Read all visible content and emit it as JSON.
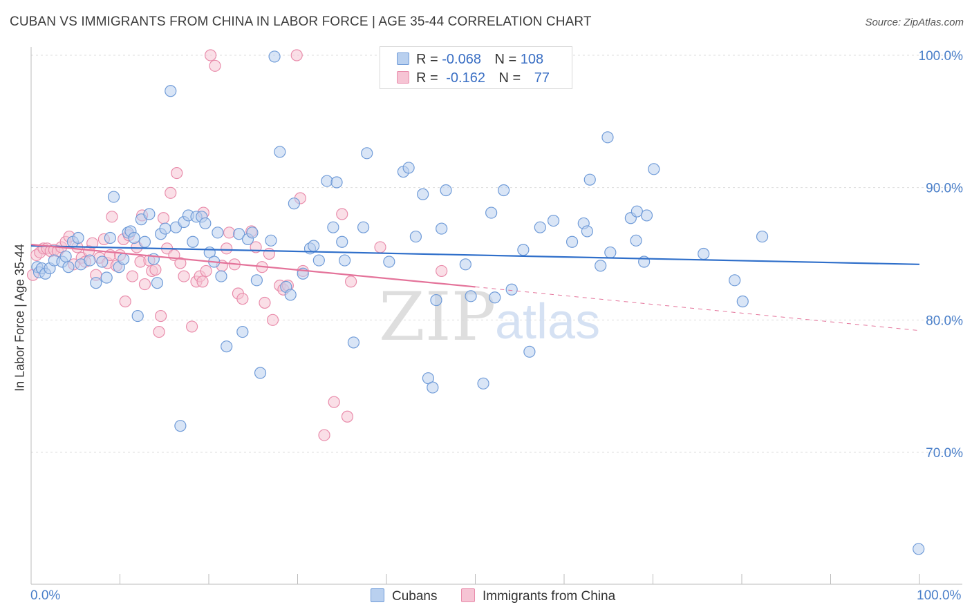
{
  "title": "CUBAN VS IMMIGRANTS FROM CHINA IN LABOR FORCE | AGE 35-44 CORRELATION CHART",
  "source": "Source: ZipAtlas.com",
  "watermark": {
    "zip": "ZIP",
    "atlas": "atlas"
  },
  "legend": {
    "rows": [
      {
        "r_label": "R =",
        "r_value": "-0.068",
        "n_label": "N =",
        "n_value": "108"
      },
      {
        "r_label": "R =",
        "r_value": "-0.162",
        "n_label": "N =",
        "n_value": "77"
      }
    ]
  },
  "bottom_legend": {
    "series1": "Cubans",
    "series2": "Immigrants from China"
  },
  "colors": {
    "blue_fill": "#b9d0ef",
    "blue_stroke": "#6f9bd8",
    "blue_line": "#2f6fca",
    "pink_fill": "#f6c4d4",
    "pink_stroke": "#e98cab",
    "pink_line": "#e4739a",
    "grid": "#dddddd",
    "axis": "#bbbbbb",
    "tick_text": "#4a7fc9"
  },
  "chart_data": {
    "type": "scatter",
    "title": "CUBAN VS IMMIGRANTS FROM CHINA IN LABOR FORCE | AGE 35-44 CORRELATION CHART",
    "xlabel": "",
    "ylabel": "In Labor Force | Age 35-44",
    "x_ticks": [
      "0.0%",
      "100.0%"
    ],
    "y_ticks": [
      "70.0%",
      "80.0%",
      "90.0%",
      "100.0%"
    ],
    "y_tick_values": [
      70,
      80,
      90,
      100
    ],
    "xlim": [
      0,
      100
    ],
    "ylim": [
      60,
      101
    ],
    "grid": true,
    "series": [
      {
        "name": "Cubans",
        "color": "blue",
        "R": -0.068,
        "N": 108,
        "trend": {
          "x": [
            0,
            100
          ],
          "y": [
            85.6,
            84.2
          ],
          "dashed_to": null
        },
        "points": [
          [
            0.7,
            84
          ],
          [
            0.9,
            83.6
          ],
          [
            1.2,
            83.9
          ],
          [
            1.6,
            83.5
          ],
          [
            2.1,
            83.9
          ],
          [
            2.6,
            84.5
          ],
          [
            3.5,
            84.4
          ],
          [
            3.9,
            84.8
          ],
          [
            4.2,
            84
          ],
          [
            4.7,
            85.9
          ],
          [
            5.3,
            86.2
          ],
          [
            5.6,
            84.2
          ],
          [
            6.6,
            84.5
          ],
          [
            7.3,
            82.8
          ],
          [
            8.0,
            84.4
          ],
          [
            8.5,
            83.2
          ],
          [
            8.9,
            86.2
          ],
          [
            9.3,
            89.3
          ],
          [
            9.9,
            84
          ],
          [
            10.4,
            84.6
          ],
          [
            10.9,
            86.6
          ],
          [
            11.2,
            86.7
          ],
          [
            11.6,
            86.2
          ],
          [
            12.0,
            80.3
          ],
          [
            12.4,
            87.6
          ],
          [
            12.8,
            85.9
          ],
          [
            13.3,
            88
          ],
          [
            13.8,
            84.6
          ],
          [
            14.2,
            82.8
          ],
          [
            14.6,
            86.5
          ],
          [
            15.1,
            86.9
          ],
          [
            15.7,
            97.3
          ],
          [
            16.3,
            87
          ],
          [
            16.8,
            72
          ],
          [
            17.2,
            87.4
          ],
          [
            17.7,
            87.9
          ],
          [
            18.2,
            85.9
          ],
          [
            18.6,
            87.8
          ],
          [
            19.2,
            87.8
          ],
          [
            19.6,
            87.3
          ],
          [
            20.1,
            85.1
          ],
          [
            20.6,
            84.4
          ],
          [
            21.0,
            86.6
          ],
          [
            21.4,
            83.3
          ],
          [
            22.0,
            78
          ],
          [
            23.4,
            86.5
          ],
          [
            23.8,
            79.1
          ],
          [
            24.4,
            86.1
          ],
          [
            24.9,
            86.6
          ],
          [
            25.4,
            83
          ],
          [
            25.8,
            76
          ],
          [
            27.0,
            86
          ],
          [
            27.4,
            99.9
          ],
          [
            28.0,
            92.7
          ],
          [
            28.7,
            82.5
          ],
          [
            29.2,
            81.9
          ],
          [
            29.6,
            88.8
          ],
          [
            30.6,
            83.5
          ],
          [
            31.4,
            85.4
          ],
          [
            31.8,
            85.6
          ],
          [
            32.4,
            84.5
          ],
          [
            33.3,
            90.5
          ],
          [
            34.0,
            87
          ],
          [
            34.4,
            90.4
          ],
          [
            35.0,
            85.9
          ],
          [
            35.3,
            84.5
          ],
          [
            36.3,
            78.3
          ],
          [
            37.4,
            87
          ],
          [
            37.8,
            92.6
          ],
          [
            40.3,
            84.4
          ],
          [
            41.9,
            91.2
          ],
          [
            42.5,
            91.5
          ],
          [
            43.3,
            86.3
          ],
          [
            44.1,
            89.5
          ],
          [
            44.7,
            75.6
          ],
          [
            45.2,
            74.9
          ],
          [
            45.6,
            81.5
          ],
          [
            46.2,
            86.9
          ],
          [
            46.7,
            89.8
          ],
          [
            48.9,
            84.2
          ],
          [
            49.5,
            81.8
          ],
          [
            50.9,
            75.2
          ],
          [
            51.8,
            88.1
          ],
          [
            52.2,
            81.7
          ],
          [
            53.2,
            89.8
          ],
          [
            54.1,
            82.3
          ],
          [
            55.4,
            85.3
          ],
          [
            56.1,
            77.6
          ],
          [
            57.3,
            87
          ],
          [
            58.8,
            87.5
          ],
          [
            60.9,
            85.9
          ],
          [
            62.2,
            87.3
          ],
          [
            62.6,
            86.7
          ],
          [
            62.9,
            90.6
          ],
          [
            64.1,
            84.1
          ],
          [
            64.9,
            93.8
          ],
          [
            65.2,
            85.1
          ],
          [
            67.5,
            87.7
          ],
          [
            68.1,
            86
          ],
          [
            68.2,
            88.2
          ],
          [
            69.0,
            84.4
          ],
          [
            69.3,
            87.9
          ],
          [
            70.1,
            91.4
          ],
          [
            75.7,
            85
          ],
          [
            79.2,
            83
          ],
          [
            80.1,
            81.4
          ],
          [
            82.3,
            86.3
          ],
          [
            99.9,
            62.7
          ]
        ]
      },
      {
        "name": "Immigrants from China",
        "color": "pink",
        "R": -0.162,
        "N": 77,
        "trend": {
          "x": [
            0,
            50
          ],
          "y": [
            85.7,
            82.5
          ],
          "dashed_to": [
            100,
            79.2
          ]
        },
        "points": [
          [
            0.2,
            83.4
          ],
          [
            0.6,
            84.9
          ],
          [
            1.0,
            85.1
          ],
          [
            1.4,
            85.4
          ],
          [
            1.8,
            85.4
          ],
          [
            2.2,
            85.2
          ],
          [
            2.6,
            85.3
          ],
          [
            3.0,
            85.2
          ],
          [
            3.4,
            85.5
          ],
          [
            3.9,
            85.9
          ],
          [
            4.3,
            86.3
          ],
          [
            4.8,
            84.2
          ],
          [
            5.2,
            85.5
          ],
          [
            5.7,
            84.7
          ],
          [
            6.1,
            84.4
          ],
          [
            6.5,
            85.2
          ],
          [
            6.9,
            85.8
          ],
          [
            7.3,
            83.4
          ],
          [
            7.7,
            84.7
          ],
          [
            8.2,
            86.1
          ],
          [
            8.6,
            84.3
          ],
          [
            8.9,
            84.9
          ],
          [
            9.1,
            87.8
          ],
          [
            9.6,
            84.1
          ],
          [
            10.0,
            84.9
          ],
          [
            10.4,
            86.1
          ],
          [
            10.6,
            81.4
          ],
          [
            11.0,
            86.4
          ],
          [
            11.4,
            83.3
          ],
          [
            11.9,
            85.5
          ],
          [
            12.3,
            84.4
          ],
          [
            12.5,
            87.9
          ],
          [
            12.8,
            82.7
          ],
          [
            13.3,
            84.5
          ],
          [
            13.6,
            83.7
          ],
          [
            14.0,
            83.8
          ],
          [
            14.4,
            79.1
          ],
          [
            14.6,
            80.3
          ],
          [
            14.9,
            87.7
          ],
          [
            15.3,
            85.4
          ],
          [
            15.7,
            89.6
          ],
          [
            16.1,
            84.9
          ],
          [
            16.4,
            91.1
          ],
          [
            16.8,
            84.3
          ],
          [
            17.2,
            83.3
          ],
          [
            18.1,
            79.5
          ],
          [
            18.6,
            82.9
          ],
          [
            19.0,
            83.3
          ],
          [
            19.3,
            82.9
          ],
          [
            19.4,
            88.1
          ],
          [
            19.7,
            83.7
          ],
          [
            20.2,
            100
          ],
          [
            20.7,
            99.2
          ],
          [
            21.5,
            84.1
          ],
          [
            22.0,
            85.4
          ],
          [
            22.3,
            86.6
          ],
          [
            22.9,
            84.2
          ],
          [
            23.3,
            82
          ],
          [
            23.8,
            81.6
          ],
          [
            24.8,
            86.7
          ],
          [
            25.3,
            85.5
          ],
          [
            26.0,
            84
          ],
          [
            26.3,
            81.3
          ],
          [
            26.8,
            85
          ],
          [
            27.2,
            80
          ],
          [
            28.0,
            82.6
          ],
          [
            28.4,
            82.3
          ],
          [
            28.9,
            82.6
          ],
          [
            29.9,
            100
          ],
          [
            30.3,
            89.2
          ],
          [
            30.6,
            83.7
          ],
          [
            33.0,
            71.3
          ],
          [
            34.1,
            73.8
          ],
          [
            35.0,
            88
          ],
          [
            35.6,
            72.7
          ],
          [
            36.0,
            82.9
          ],
          [
            39.3,
            85.5
          ],
          [
            46.2,
            83.7
          ]
        ]
      }
    ]
  }
}
